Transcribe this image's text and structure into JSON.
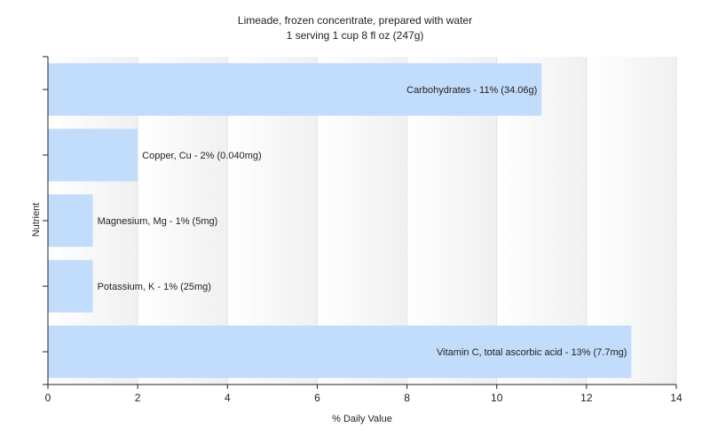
{
  "chart_data": {
    "type": "bar",
    "orientation": "horizontal",
    "title": "Limeade, frozen concentrate, prepared with water",
    "subtitle": "1 serving 1 cup 8 fl oz (247g)",
    "xlabel": "% Daily Value",
    "ylabel": "Nutrient",
    "xlim": [
      0,
      14
    ],
    "xticks": [
      0,
      2,
      4,
      6,
      8,
      10,
      12,
      14
    ],
    "grid": true,
    "legend": "none",
    "bar_color": "#c2dcfc",
    "categories": [
      "Carbohydrates",
      "Copper, Cu",
      "Magnesium, Mg",
      "Potassium, K",
      "Vitamin C, total ascorbic acid"
    ],
    "values": [
      11,
      2,
      1,
      1,
      13
    ],
    "data_labels": [
      "Carbohydrates - 11% (34.06g)",
      "Copper, Cu - 2% (0.040mg)",
      "Magnesium, Mg - 1% (5mg)",
      "Potassium, K - 1% (25mg)",
      "Vitamin C, total ascorbic acid - 13% (7.7mg)"
    ]
  }
}
